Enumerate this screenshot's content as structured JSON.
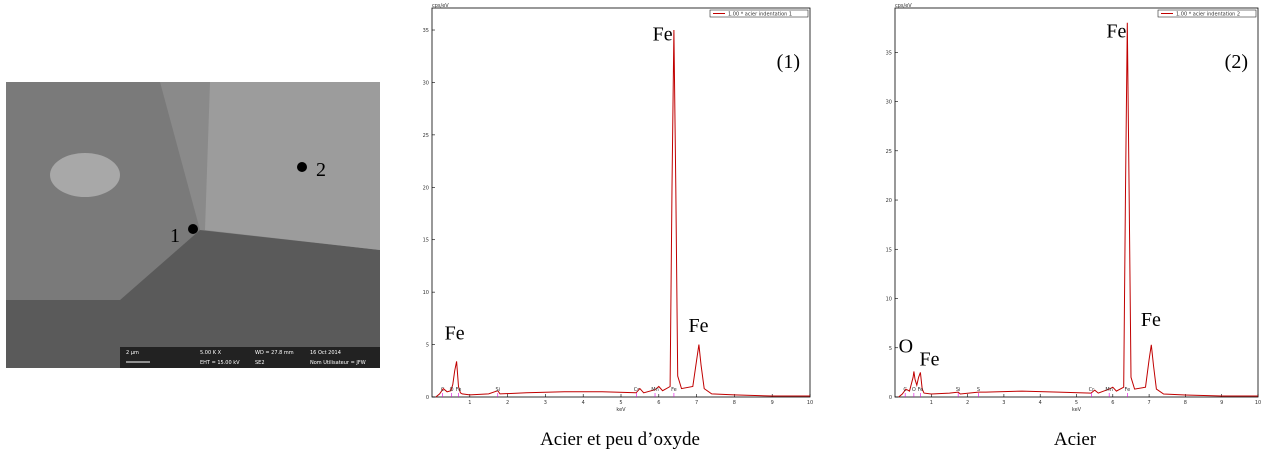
{
  "sem_image": {
    "points": [
      "1",
      "2"
    ],
    "scale": "2 µm",
    "info": [
      "5.00 K X",
      "WD = 27.8 mm",
      "16 Oct 2014",
      "EHT = 15.00 kV",
      "SE2",
      "Nom Utilisateur = JFW"
    ]
  },
  "chart_data": [
    {
      "type": "line",
      "ylabel": "cps/eV",
      "xlabel": "keV",
      "caption": "Acier et peu d’oxyde",
      "panel_label": "(1)",
      "xlim": [
        0,
        10
      ],
      "xticks": [
        1,
        2,
        3,
        4,
        5,
        6,
        7,
        8,
        9,
        10
      ],
      "ylim": [
        0,
        37.1
      ],
      "yticks": [
        0,
        5,
        10,
        15,
        20,
        25,
        30,
        35
      ],
      "series": [
        {
          "name": "1.00 * acier indentation 1",
          "color": "#c00000",
          "x": [
            0.1,
            0.2,
            0.3,
            0.4,
            0.5,
            0.55,
            0.6,
            0.65,
            0.7,
            0.75,
            0.8,
            1.0,
            1.5,
            1.74,
            1.8,
            2.5,
            3.5,
            4.5,
            5.4,
            5.5,
            5.6,
            5.9,
            6.0,
            6.1,
            6.3,
            6.35,
            6.4,
            6.45,
            6.5,
            6.6,
            6.9,
            7.0,
            7.06,
            7.12,
            7.2,
            7.4,
            8,
            9,
            10
          ],
          "values": [
            0,
            0.3,
            0.8,
            0.5,
            0.6,
            1.2,
            2.5,
            3.4,
            1.0,
            0.4,
            0.3,
            0.2,
            0.3,
            0.6,
            0.3,
            0.4,
            0.5,
            0.5,
            0.4,
            0.8,
            0.4,
            0.7,
            1.0,
            0.6,
            1.0,
            20,
            35,
            20,
            2,
            0.8,
            1.0,
            3.5,
            5,
            3,
            0.8,
            0.3,
            0.2,
            0.1,
            0.1
          ]
        }
      ],
      "element_labels": [
        {
          "text": "C",
          "x": 0.28
        },
        {
          "text": "O",
          "x": 0.52
        },
        {
          "text": "Fe",
          "x": 0.7
        },
        {
          "text": "Si",
          "x": 1.74
        },
        {
          "text": "Cr",
          "x": 5.41
        },
        {
          "text": "Mn",
          "x": 5.9
        },
        {
          "text": "Fe",
          "x": 6.4
        }
      ],
      "annotations": [
        {
          "text": "Fe",
          "x": 6.1,
          "y": 34
        },
        {
          "text": "Fe",
          "x": 0.6,
          "y": 5.5
        },
        {
          "text": "Fe",
          "x": 7.05,
          "y": 6.2
        }
      ]
    },
    {
      "type": "line",
      "ylabel": "cps/eV",
      "xlabel": "keV",
      "caption": "Acier",
      "panel_label": "(2)",
      "xlim": [
        0,
        10
      ],
      "xticks": [
        1,
        2,
        3,
        4,
        5,
        6,
        7,
        8,
        9,
        10
      ],
      "ylim": [
        0,
        39.5
      ],
      "yticks": [
        0,
        5,
        10,
        15,
        20,
        25,
        30,
        35
      ],
      "series": [
        {
          "name": "1.00 * acier indentation 2",
          "color": "#c00000",
          "x": [
            0.1,
            0.2,
            0.3,
            0.4,
            0.5,
            0.52,
            0.55,
            0.6,
            0.65,
            0.7,
            0.75,
            0.8,
            1.0,
            1.5,
            1.74,
            1.8,
            2.3,
            2.5,
            3.5,
            4.5,
            5.4,
            5.5,
            5.6,
            5.9,
            6.0,
            6.1,
            6.3,
            6.35,
            6.4,
            6.45,
            6.5,
            6.6,
            6.9,
            7.0,
            7.06,
            7.12,
            7.2,
            7.4,
            8,
            9,
            10
          ],
          "values": [
            0,
            0.3,
            0.8,
            0.6,
            2.0,
            2.6,
            1.8,
            1.2,
            2.0,
            2.5,
            0.8,
            0.4,
            0.3,
            0.4,
            0.5,
            0.3,
            0.5,
            0.5,
            0.6,
            0.5,
            0.4,
            0.7,
            0.4,
            0.8,
            1.0,
            0.6,
            1.0,
            21,
            38,
            21,
            2,
            0.8,
            1.0,
            3.8,
            5.3,
            3.2,
            0.8,
            0.3,
            0.2,
            0.1,
            0.1
          ]
        }
      ],
      "element_labels": [
        {
          "text": "C",
          "x": 0.28
        },
        {
          "text": "O",
          "x": 0.52
        },
        {
          "text": "Fe",
          "x": 0.7
        },
        {
          "text": "Si",
          "x": 1.74
        },
        {
          "text": "S",
          "x": 2.3
        },
        {
          "text": "Cr",
          "x": 5.41
        },
        {
          "text": "Mn",
          "x": 5.9
        },
        {
          "text": "Fe",
          "x": 6.4
        }
      ],
      "annotations": [
        {
          "text": "Fe",
          "x": 6.1,
          "y": 36.5
        },
        {
          "text": "O",
          "x": 0.3,
          "y": 4.5
        },
        {
          "text": "Fe",
          "x": 0.95,
          "y": 3.2
        },
        {
          "text": "Fe",
          "x": 7.05,
          "y": 7.2
        }
      ]
    }
  ]
}
